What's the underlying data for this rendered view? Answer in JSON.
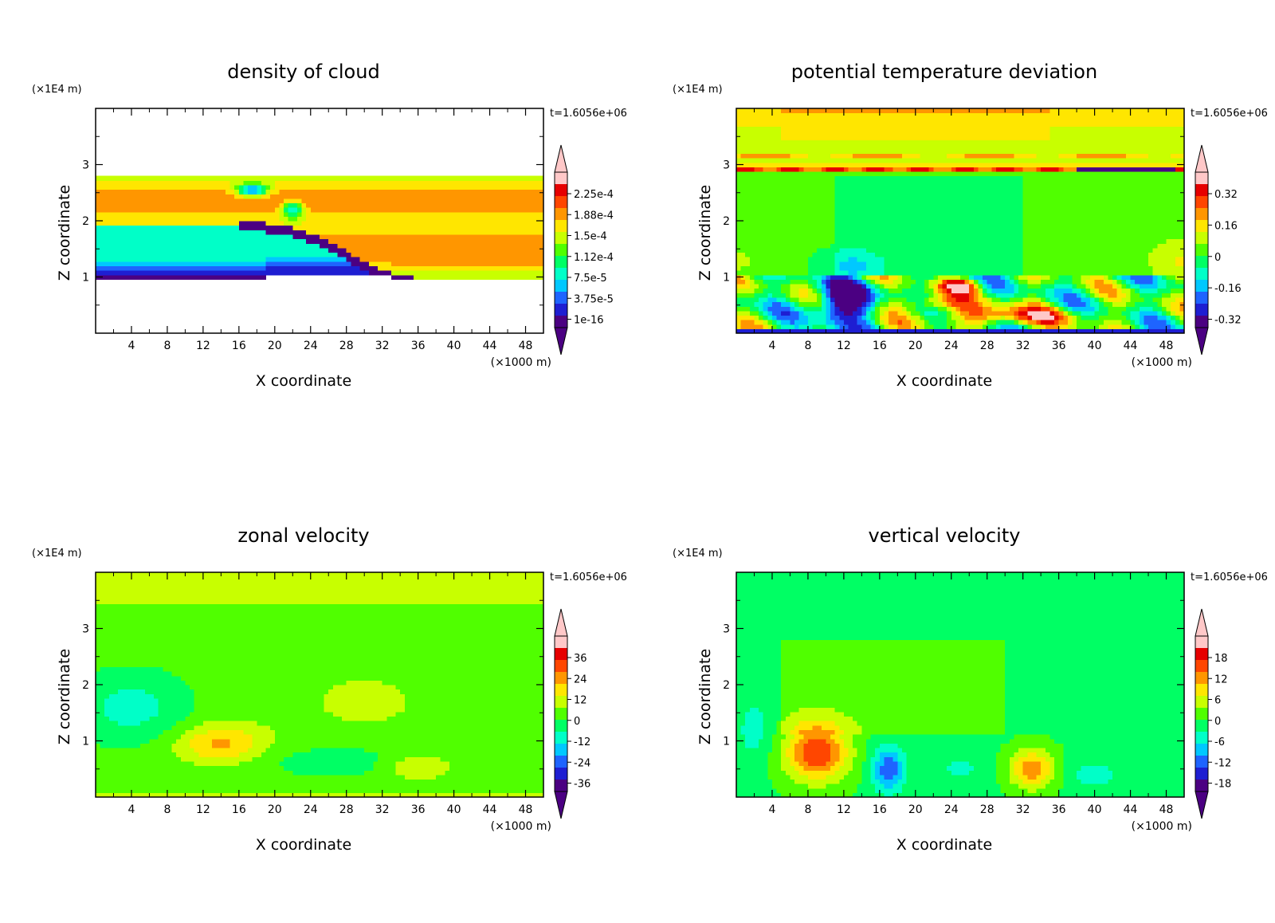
{
  "figure": {
    "background": "#ffffff",
    "frame_color": "#000000"
  },
  "colormap": [
    "#4B0082",
    "#1E1ED2",
    "#1E64FF",
    "#00C8FF",
    "#00FFC8",
    "#00FF64",
    "#50FF00",
    "#C8FF00",
    "#FFE600",
    "#FF9600",
    "#FF4600",
    "#E60000",
    "#FFC8C8"
  ],
  "chart_data": [
    {
      "type": "heatmap",
      "title": "density of cloud",
      "xlabel": "X coordinate",
      "x_unit": "(×1000 m)",
      "ylabel": "Z coordinate",
      "y_unit": "(×1E4 m)",
      "xlim": [
        0,
        50
      ],
      "ylim": [
        0,
        4
      ],
      "xticks": [
        "4",
        "8",
        "12",
        "16",
        "20",
        "24",
        "28",
        "32",
        "36",
        "40",
        "44",
        "48"
      ],
      "yticks": [
        "1",
        "2",
        "3"
      ],
      "time_label": "t=1.6056e+06",
      "colorbar_labels": [
        "2.25e-4",
        "1.88e-4",
        "1.5e-4",
        "1.12e-4",
        "7.5e-5",
        "3.75e-5",
        "1e-16"
      ],
      "levels": [
        1e-16,
        3.75e-05,
        7.5e-05,
        0.000112,
        0.00015,
        0.000188,
        0.000225
      ],
      "field": "cloud",
      "background": "#ffffff"
    },
    {
      "type": "heatmap",
      "title": "potential temperature deviation",
      "xlabel": "X coordinate",
      "x_unit": "(×1000 m)",
      "ylabel": "Z coordinate",
      "y_unit": "(×1E4 m)",
      "xlim": [
        0,
        50
      ],
      "ylim": [
        0,
        4
      ],
      "xticks": [
        "4",
        "8",
        "12",
        "16",
        "20",
        "24",
        "28",
        "32",
        "36",
        "40",
        "44",
        "48"
      ],
      "yticks": [
        "1",
        "2",
        "3"
      ],
      "time_label": "t=1.6056e+06",
      "colorbar_labels": [
        "0.32",
        "0.16",
        "0",
        "-0.16",
        "-0.32"
      ],
      "levels": [
        -0.32,
        -0.16,
        0,
        0.16,
        0.32
      ],
      "field": "theta",
      "background": "#00FF96"
    },
    {
      "type": "heatmap",
      "title": "zonal velocity",
      "xlabel": "X coordinate",
      "x_unit": "(×1000 m)",
      "ylabel": "Z coordinate",
      "y_unit": "(×1E4 m)",
      "xlim": [
        0,
        50
      ],
      "ylim": [
        0,
        4
      ],
      "xticks": [
        "4",
        "8",
        "12",
        "16",
        "20",
        "24",
        "28",
        "32",
        "36",
        "40",
        "44",
        "48"
      ],
      "yticks": [
        "1",
        "2",
        "3"
      ],
      "time_label": "t=1.6056e+06",
      "colorbar_labels": [
        "36",
        "24",
        "12",
        "0",
        "-12",
        "-24",
        "-36"
      ],
      "levels": [
        -36,
        -24,
        -12,
        0,
        12,
        24,
        36
      ],
      "field": "u",
      "background": "#00FF96"
    },
    {
      "type": "heatmap",
      "title": "vertical velocity",
      "xlabel": "X coordinate",
      "x_unit": "(×1000 m)",
      "ylabel": "Z coordinate",
      "y_unit": "(×1E4 m)",
      "xlim": [
        0,
        50
      ],
      "ylim": [
        0,
        4
      ],
      "xticks": [
        "4",
        "8",
        "12",
        "16",
        "20",
        "24",
        "28",
        "32",
        "36",
        "40",
        "44",
        "48"
      ],
      "yticks": [
        "1",
        "2",
        "3"
      ],
      "time_label": "t=1.6056e+06",
      "colorbar_labels": [
        "18",
        "12",
        "6",
        "0",
        "-6",
        "-12",
        "-18"
      ],
      "levels": [
        -18,
        -12,
        -6,
        0,
        6,
        12,
        18
      ],
      "field": "w",
      "background": "#00FF96"
    }
  ]
}
